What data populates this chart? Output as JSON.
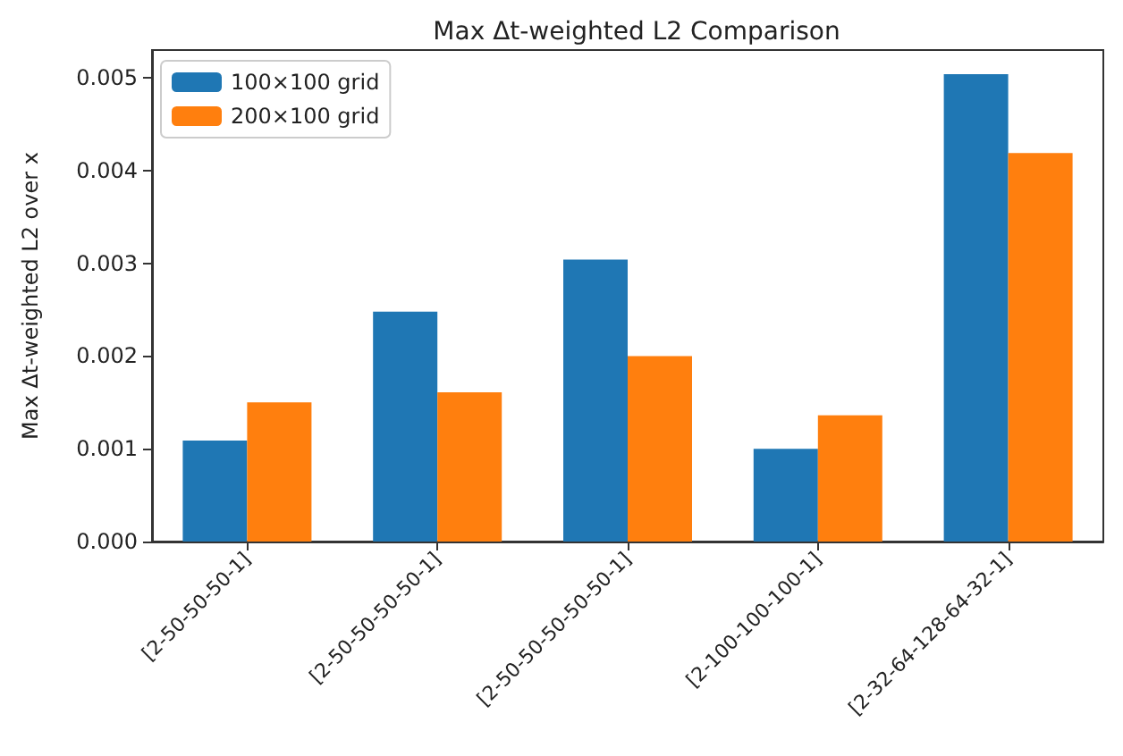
{
  "chart_data": {
    "type": "bar",
    "title": "Max Δt-weighted L2 Comparison",
    "ylabel": "Max Δt-weighted L2 over x",
    "categories": [
      "[2-50-50-50-1]",
      "[2-50-50-50-50-1]",
      "[2-50-50-50-50-50-1]",
      "[2-100-100-100-1]",
      "[2-32-64-128-64-32-1]"
    ],
    "series": [
      {
        "name": "100×100 grid",
        "color": "#1f77b4",
        "values": [
          0.00109,
          0.00248,
          0.00304,
          0.001,
          0.00504
        ]
      },
      {
        "name": "200×100 grid",
        "color": "#ff7f0e",
        "values": [
          0.0015,
          0.00161,
          0.002,
          0.00136,
          0.00419
        ]
      }
    ],
    "ylim": [
      0,
      0.0053
    ],
    "yticks": [
      {
        "value": 0,
        "label": "0.000"
      },
      {
        "value": 0.001,
        "label": "0.001"
      },
      {
        "value": 0.002,
        "label": "0.002"
      },
      {
        "value": 0.003,
        "label": "0.003"
      },
      {
        "value": 0.004,
        "label": "0.004"
      },
      {
        "value": 0.005,
        "label": "0.005"
      }
    ],
    "grid": false,
    "legend": "top left"
  }
}
